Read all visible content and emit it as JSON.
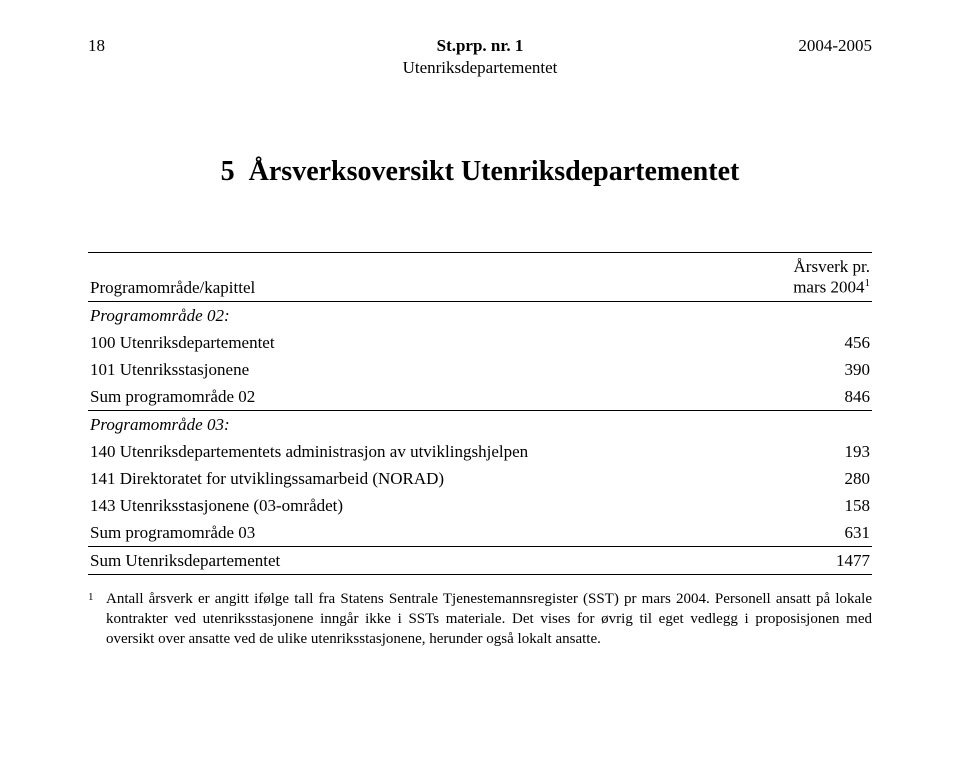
{
  "header": {
    "page_number": "18",
    "title_main": "St.prp. nr. 1",
    "year_span": "2004-2005",
    "subtitle": "Utenriksdepartementet"
  },
  "chapter": {
    "number": "5",
    "title": "Årsverksoversikt Utenriksdepartementet"
  },
  "table": {
    "col_left_header": "Programområde/kapittel",
    "col_right_header_line1": "Årsverk pr.",
    "col_right_header_line2": "mars 2004",
    "col_right_header_sup": "1",
    "rows": [
      {
        "label": "Programområde 02:",
        "value": "",
        "italic": true
      },
      {
        "label": "100 Utenriksdepartementet",
        "value": "456",
        "italic": false
      },
      {
        "label": "101 Utenriksstasjonene",
        "value": "390",
        "italic": false
      },
      {
        "label": "Sum programområde 02",
        "value": "846",
        "italic": false,
        "rule_below": true
      },
      {
        "label": "Programområde 03:",
        "value": "",
        "italic": true
      },
      {
        "label": "140 Utenriksdepartementets administrasjon av utviklingshjelpen",
        "value": "193",
        "italic": false
      },
      {
        "label": "141 Direktoratet for utviklingssamarbeid (NORAD)",
        "value": "280",
        "italic": false
      },
      {
        "label": "143 Utenriksstasjonene (03-området)",
        "value": "158",
        "italic": false
      },
      {
        "label": "Sum programområde 03",
        "value": "631",
        "italic": false,
        "rule_below": true
      },
      {
        "label": "Sum Utenriksdepartementet",
        "value": "1477",
        "italic": false,
        "rule_below": true
      }
    ]
  },
  "footnote": {
    "mark": "1",
    "text": "Antall årsverk er angitt ifølge tall fra Statens Sentrale Tjenestemannsregister (SST) pr mars 2004. Personell ansatt på lokale kontrakter ved utenriksstasjonene inngår ikke i SSTs materiale. Det vises for øvrig til eget vedlegg i proposisjonen med oversikt over ansatte ved de ulike utenriksstasjonene, herunder også lokalt ansatte."
  }
}
